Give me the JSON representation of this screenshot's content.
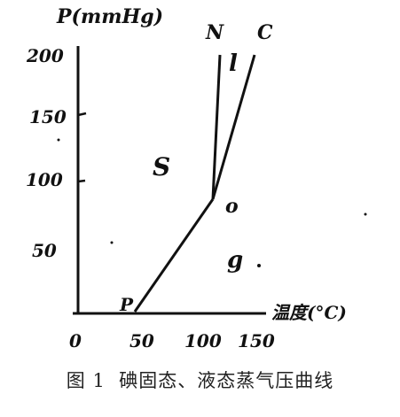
{
  "diagram": {
    "y_axis_label": "P(mmHg)",
    "x_axis_label": "温度(°C)",
    "y_ticks": [
      "200",
      "150",
      "100",
      "50"
    ],
    "x_ticks": [
      "0",
      "50",
      "100",
      "150"
    ],
    "point_labels": {
      "N": "N",
      "C": "C",
      "l": "l",
      "S": "S",
      "O": "o",
      "g": "g",
      "P": "P"
    },
    "line_color": "#111111"
  },
  "caption": {
    "label": "图 1",
    "text": "碘固态、液态蒸气压曲线"
  }
}
